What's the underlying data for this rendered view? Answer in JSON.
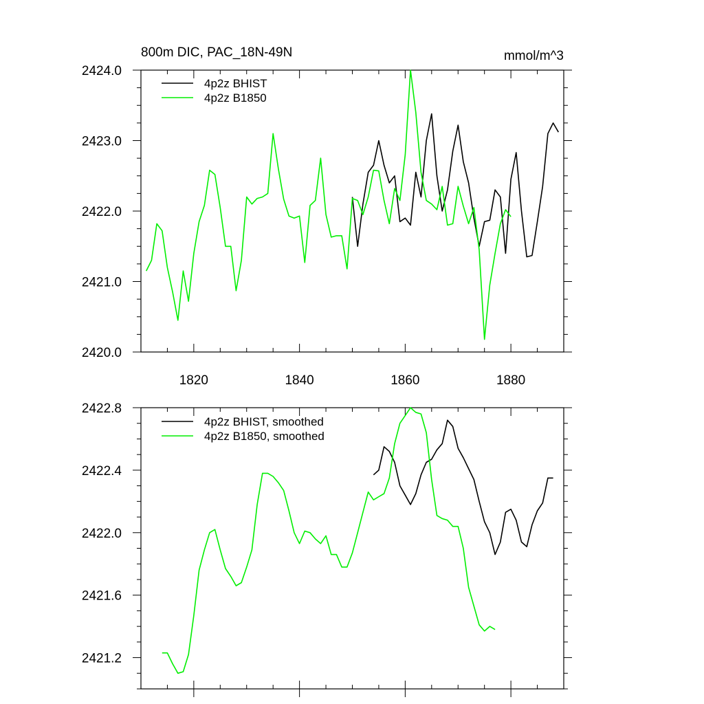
{
  "colors": {
    "bhist": "#000000",
    "b1850": "#00ee00",
    "frame": "#000000"
  },
  "chart_data": [
    {
      "type": "line",
      "title": "800m DIC, PAC_18N-49N",
      "units": "mmol/m^3",
      "xlim": [
        1810,
        1890
      ],
      "ylim": [
        2420.0,
        2424.0
      ],
      "xticks": [
        1820,
        1840,
        1860,
        1880
      ],
      "xtick_labels": [
        "1820",
        "1840",
        "1860",
        "1880"
      ],
      "yticks": [
        2420.0,
        2421.0,
        2422.0,
        2423.0,
        2424.0
      ],
      "ytick_labels": [
        "2420.0",
        "2421.0",
        "2422.0",
        "2423.0",
        "2424.0"
      ],
      "legend_position": "top-left",
      "series": [
        {
          "name": "4p2z BHIST",
          "color": "#000000",
          "x": [
            1850,
            1851,
            1852,
            1853,
            1854,
            1855,
            1856,
            1857,
            1858,
            1859,
            1860,
            1861,
            1862,
            1863,
            1864,
            1865,
            1866,
            1867,
            1868,
            1869,
            1870,
            1871,
            1872,
            1873,
            1874,
            1875,
            1876,
            1877,
            1878,
            1879,
            1880,
            1881,
            1882,
            1883,
            1884,
            1885,
            1886,
            1887,
            1888,
            1889
          ],
          "y": [
            2422.2,
            2421.5,
            2422.1,
            2422.55,
            2422.65,
            2423.0,
            2422.65,
            2422.4,
            2422.5,
            2421.85,
            2421.9,
            2421.8,
            2422.55,
            2422.2,
            2423.0,
            2423.38,
            2422.5,
            2422.0,
            2422.3,
            2422.85,
            2423.22,
            2422.7,
            2422.4,
            2421.9,
            2421.5,
            2421.85,
            2421.87,
            2422.3,
            2422.2,
            2421.4,
            2422.45,
            2422.83,
            2422.0,
            2421.35,
            2421.37,
            2421.85,
            2422.35,
            2423.1,
            2423.25,
            2423.12
          ]
        },
        {
          "name": "4p2z B1850",
          "color": "#00ee00",
          "x": [
            1811,
            1812,
            1813,
            1814,
            1815,
            1816,
            1817,
            1818,
            1819,
            1820,
            1821,
            1822,
            1823,
            1824,
            1825,
            1826,
            1827,
            1828,
            1829,
            1830,
            1831,
            1832,
            1833,
            1834,
            1835,
            1836,
            1837,
            1838,
            1839,
            1840,
            1841,
            1842,
            1843,
            1844,
            1845,
            1846,
            1847,
            1848,
            1849,
            1850,
            1851,
            1852,
            1853,
            1854,
            1855,
            1856,
            1857,
            1858,
            1859,
            1860,
            1861,
            1862,
            1863,
            1864,
            1865,
            1866,
            1867,
            1868,
            1869,
            1870,
            1871,
            1872,
            1873,
            1874,
            1875,
            1876,
            1877,
            1878,
            1879,
            1880
          ],
          "y": [
            2421.15,
            2421.3,
            2421.82,
            2421.72,
            2421.2,
            2420.85,
            2420.45,
            2421.15,
            2420.72,
            2421.4,
            2421.85,
            2422.08,
            2422.58,
            2422.52,
            2422.05,
            2421.5,
            2421.5,
            2420.87,
            2421.3,
            2422.2,
            2422.1,
            2422.18,
            2422.2,
            2422.25,
            2423.1,
            2422.6,
            2422.17,
            2421.93,
            2421.9,
            2421.93,
            2421.27,
            2422.08,
            2422.15,
            2422.75,
            2421.95,
            2421.63,
            2421.65,
            2421.65,
            2421.18,
            2422.18,
            2422.15,
            2421.95,
            2422.2,
            2422.58,
            2422.57,
            2422.15,
            2421.82,
            2422.32,
            2422.15,
            2422.8,
            2424.0,
            2423.4,
            2422.55,
            2422.15,
            2422.1,
            2422.02,
            2422.35,
            2421.8,
            2421.82,
            2422.35,
            2422.07,
            2421.82,
            2422.05,
            2421.45,
            2420.18,
            2420.95,
            2421.4,
            2421.82,
            2422.02,
            2421.92
          ]
        }
      ]
    },
    {
      "type": "line",
      "xlim": [
        1810,
        1890
      ],
      "ylim": [
        2421.0,
        2422.8
      ],
      "xticks": [
        1820,
        1840,
        1860,
        1880
      ],
      "yticks": [
        2421.2,
        2421.6,
        2422.0,
        2422.4,
        2422.8
      ],
      "ytick_labels": [
        "2421.2",
        "2421.6",
        "2422.0",
        "2422.4",
        "2422.8"
      ],
      "legend_position": "top-left",
      "series": [
        {
          "name": "4p2z BHIST, smoothed",
          "color": "#000000",
          "x": [
            1854,
            1855,
            1856,
            1857,
            1858,
            1859,
            1860,
            1861,
            1862,
            1863,
            1864,
            1865,
            1866,
            1867,
            1868,
            1869,
            1870,
            1871,
            1872,
            1873,
            1874,
            1875,
            1876,
            1877,
            1878,
            1879,
            1880,
            1881,
            1882,
            1883,
            1884,
            1885,
            1886,
            1887,
            1888
          ],
          "y": [
            2422.37,
            2422.4,
            2422.55,
            2422.52,
            2422.45,
            2422.3,
            2422.24,
            2422.18,
            2422.25,
            2422.37,
            2422.45,
            2422.47,
            2422.53,
            2422.57,
            2422.72,
            2422.68,
            2422.54,
            2422.48,
            2422.41,
            2422.34,
            2422.2,
            2422.07,
            2422.0,
            2421.86,
            2421.94,
            2422.13,
            2422.15,
            2422.08,
            2421.94,
            2421.91,
            2422.05,
            2422.14,
            2422.19,
            2422.35,
            2422.35
          ]
        },
        {
          "name": "4p2z B1850, smoothed",
          "color": "#00ee00",
          "x": [
            1814,
            1815,
            1816,
            1817,
            1818,
            1819,
            1820,
            1821,
            1822,
            1823,
            1824,
            1825,
            1826,
            1827,
            1828,
            1829,
            1830,
            1831,
            1832,
            1833,
            1834,
            1835,
            1836,
            1837,
            1838,
            1839,
            1840,
            1841,
            1842,
            1843,
            1844,
            1845,
            1846,
            1847,
            1848,
            1849,
            1850,
            1851,
            1852,
            1853,
            1854,
            1855,
            1856,
            1857,
            1858,
            1859,
            1860,
            1861,
            1862,
            1863,
            1864,
            1865,
            1866,
            1867,
            1868,
            1869,
            1870,
            1871,
            1872,
            1873,
            1874,
            1875,
            1876,
            1877
          ],
          "y": [
            2421.23,
            2421.23,
            2421.16,
            2421.1,
            2421.11,
            2421.22,
            2421.47,
            2421.76,
            2421.89,
            2422.0,
            2422.02,
            2421.89,
            2421.77,
            2421.72,
            2421.66,
            2421.68,
            2421.78,
            2421.89,
            2422.18,
            2422.38,
            2422.38,
            2422.36,
            2422.32,
            2422.27,
            2422.14,
            2422.0,
            2421.93,
            2422.01,
            2422.0,
            2421.96,
            2421.93,
            2421.98,
            2421.86,
            2421.86,
            2421.78,
            2421.78,
            2421.87,
            2422.0,
            2422.13,
            2422.26,
            2422.21,
            2422.23,
            2422.25,
            2422.35,
            2422.57,
            2422.7,
            2422.75,
            2422.8,
            2422.77,
            2422.76,
            2422.64,
            2422.34,
            2422.11,
            2422.09,
            2422.08,
            2422.04,
            2422.04,
            2421.9,
            2421.65,
            2421.53,
            2421.41,
            2421.37,
            2421.4,
            2421.38
          ]
        }
      ]
    }
  ]
}
